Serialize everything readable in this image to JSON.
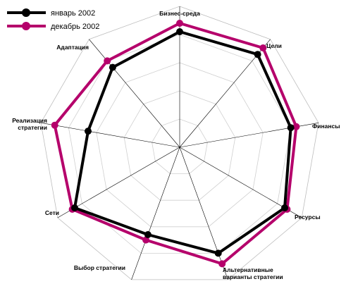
{
  "chart_data": {
    "type": "radar",
    "title": "",
    "axes": [
      {
        "label": [
          "Бизнес-среда"
        ]
      },
      {
        "label": [
          "Цели"
        ]
      },
      {
        "label": [
          "Финансы"
        ]
      },
      {
        "label": [
          "Ресурсы"
        ]
      },
      {
        "label": [
          "Альтернативные",
          "варианты стратегии"
        ]
      },
      {
        "label": [
          "Выбор стратегии"
        ]
      },
      {
        "label": [
          "Сети"
        ]
      },
      {
        "label": [
          "Реализация",
          "стратегии"
        ]
      },
      {
        "label": [
          "Адаптация"
        ]
      }
    ],
    "r_range": [
      0,
      5
    ],
    "ring_count": 5,
    "grid": true,
    "legend_position": "top-left",
    "series": [
      {
        "name": "январь 2002",
        "color": "#000000",
        "values": [
          4.1,
          4.3,
          4.0,
          4.3,
          4.0,
          3.3,
          4.3,
          3.3,
          3.7
        ]
      },
      {
        "name": "декабрь 2002",
        "color": "#b5006b",
        "values": [
          4.4,
          4.6,
          4.2,
          4.4,
          4.4,
          3.5,
          4.4,
          4.5,
          4.0
        ]
      }
    ]
  }
}
